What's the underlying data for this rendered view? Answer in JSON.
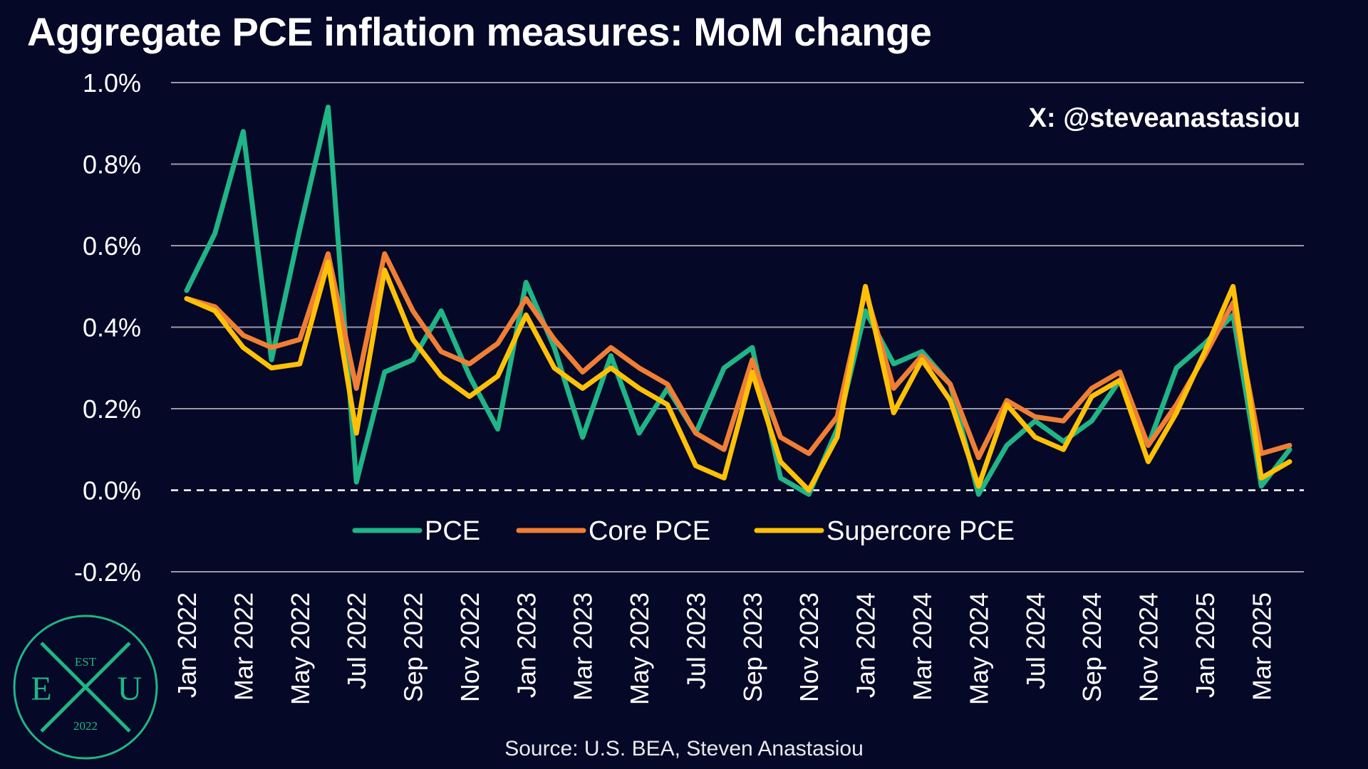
{
  "title": "Aggregate PCE inflation measures: MoM change",
  "watermark": "X: @steveanastasiou",
  "source": "Source: U.S. BEA, Steven Anastasiou",
  "logo": {
    "top_text": "EST",
    "left_letter": "E",
    "center_letter": "X",
    "right_letter": "U",
    "year": "2022"
  },
  "colors": {
    "background": "#050826",
    "PCE": "#1fb587",
    "Core PCE": "#f07e35",
    "Supercore PCE": "#ffc107",
    "grid": "#9a9aa8",
    "logo": "#1fb587"
  },
  "chart_data": {
    "type": "line",
    "title": "Aggregate PCE inflation measures: MoM change",
    "xlabel": "",
    "ylabel": "",
    "ylim": [
      -0.2,
      1.0
    ],
    "yticks": [
      "-0.2%",
      "0.0%",
      "0.2%",
      "0.4%",
      "0.6%",
      "0.8%",
      "1.0%"
    ],
    "ytick_values": [
      -0.2,
      0.0,
      0.2,
      0.4,
      0.6,
      0.8,
      1.0
    ],
    "grid": "horizontal",
    "zero_line": "dashed",
    "legend": "bottom-center",
    "x": [
      "Jan 2022",
      "Feb 2022",
      "Mar 2022",
      "Apr 2022",
      "May 2022",
      "Jun 2022",
      "Jul 2022",
      "Aug 2022",
      "Sep 2022",
      "Oct 2022",
      "Nov 2022",
      "Dec 2022",
      "Jan 2023",
      "Feb 2023",
      "Mar 2023",
      "Apr 2023",
      "May 2023",
      "Jun 2023",
      "Jul 2023",
      "Aug 2023",
      "Sep 2023",
      "Oct 2023",
      "Nov 2023",
      "Dec 2023",
      "Jan 2024",
      "Feb 2024",
      "Mar 2024",
      "Apr 2024",
      "May 2024",
      "Jun 2024",
      "Jul 2024",
      "Aug 2024",
      "Sep 2024",
      "Oct 2024",
      "Nov 2024",
      "Dec 2024",
      "Jan 2025",
      "Feb 2025",
      "Mar 2025",
      "Apr 2025"
    ],
    "xtick_labels": [
      "Jan 2022",
      "Mar 2022",
      "May 2022",
      "Jul 2022",
      "Sep 2022",
      "Nov 2022",
      "Jan 2023",
      "Mar 2023",
      "May 2023",
      "Jul 2023",
      "Sep 2023",
      "Nov 2023",
      "Jan 2024",
      "Mar 2024",
      "May 2024",
      "Jul 2024",
      "Sep 2024",
      "Nov 2024",
      "Jan 2025",
      "Mar 2025"
    ],
    "series": [
      {
        "name": "PCE",
        "values": [
          0.49,
          0.63,
          0.88,
          0.32,
          0.64,
          0.94,
          0.02,
          0.29,
          0.32,
          0.44,
          0.28,
          0.15,
          0.51,
          0.35,
          0.13,
          0.33,
          0.14,
          0.25,
          0.14,
          0.3,
          0.35,
          0.03,
          -0.01,
          0.15,
          0.44,
          0.31,
          0.34,
          0.26,
          -0.01,
          0.11,
          0.17,
          0.12,
          0.17,
          0.27,
          0.11,
          0.3,
          0.36,
          0.43,
          0.01,
          0.1
        ]
      },
      {
        "name": "Core PCE",
        "values": [
          0.47,
          0.45,
          0.38,
          0.35,
          0.37,
          0.58,
          0.25,
          0.58,
          0.44,
          0.34,
          0.31,
          0.36,
          0.47,
          0.37,
          0.29,
          0.35,
          0.3,
          0.26,
          0.14,
          0.1,
          0.32,
          0.13,
          0.09,
          0.18,
          0.49,
          0.25,
          0.33,
          0.26,
          0.08,
          0.22,
          0.18,
          0.17,
          0.25,
          0.29,
          0.11,
          0.21,
          0.33,
          0.46,
          0.09,
          0.11
        ]
      },
      {
        "name": "Supercore PCE",
        "values": [
          0.47,
          0.44,
          0.35,
          0.3,
          0.31,
          0.56,
          0.14,
          0.54,
          0.37,
          0.28,
          0.23,
          0.28,
          0.43,
          0.3,
          0.25,
          0.3,
          0.25,
          0.21,
          0.06,
          0.03,
          0.29,
          0.07,
          0.0,
          0.13,
          0.5,
          0.19,
          0.32,
          0.22,
          0.01,
          0.21,
          0.13,
          0.1,
          0.23,
          0.27,
          0.07,
          0.19,
          0.34,
          0.5,
          0.03,
          0.07
        ]
      }
    ]
  }
}
